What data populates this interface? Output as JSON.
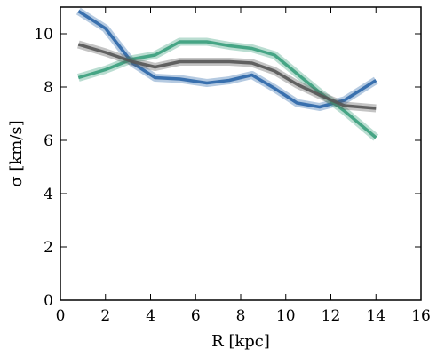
{
  "chart_data": {
    "type": "line",
    "xlabel": "R [kpc]",
    "ylabel": "σ [km/s]",
    "xlim": [
      0,
      16
    ],
    "ylim": [
      0,
      11
    ],
    "xticks": [
      0,
      2,
      4,
      6,
      8,
      10,
      12,
      14,
      16
    ],
    "yticks": [
      0,
      2,
      4,
      6,
      8,
      10
    ],
    "grid": false,
    "x": [
      0.8,
      2.0,
      3.2,
      4.2,
      5.3,
      6.5,
      7.5,
      8.5,
      9.5,
      10.5,
      11.5,
      12.6,
      14.0
    ],
    "series": [
      {
        "color": "#2b66a8",
        "values": [
          10.85,
          10.2,
          8.9,
          8.35,
          8.3,
          8.15,
          8.25,
          8.45,
          7.95,
          7.4,
          7.25,
          7.5,
          8.25
        ]
      },
      {
        "color": "#3a9e7c",
        "values": [
          8.35,
          8.65,
          9.05,
          9.2,
          9.7,
          9.7,
          9.55,
          9.45,
          9.2,
          8.5,
          7.8,
          7.1,
          6.1
        ]
      },
      {
        "color": "#555555",
        "values": [
          9.6,
          9.3,
          8.95,
          8.75,
          8.95,
          8.95,
          8.95,
          8.9,
          8.6,
          8.1,
          7.7,
          7.3,
          7.2
        ]
      }
    ]
  }
}
